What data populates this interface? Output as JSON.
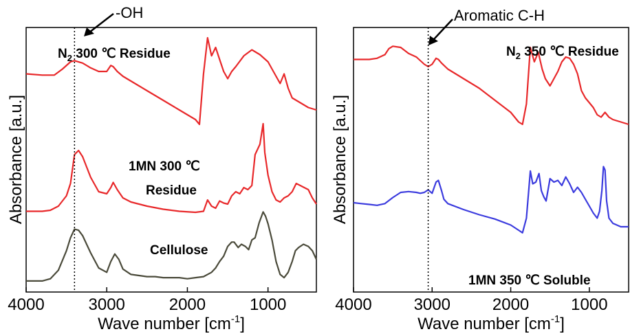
{
  "chart_data": [
    {
      "type": "line",
      "xlabel": "Wave number [cm-1]",
      "xlabel_main": "Wave number [cm",
      "xlabel_sup": "-1",
      "xlabel_end": "]",
      "ylabel": "Absorbance [a.u.]",
      "xlim": [
        4000,
        400
      ],
      "x_reversed": true,
      "xticks": [
        4000,
        3000,
        2000,
        1000
      ],
      "xtick_labels": [
        "4000",
        "3000",
        "2000",
        "1000"
      ],
      "yticks_shown": false,
      "grid": false,
      "reference_line": {
        "x": 3400,
        "label": "-OH",
        "style": "dotted"
      },
      "labels": {
        "n2": {
          "main": "N",
          "sub": "2",
          "rest": " 300 ℃ Residue"
        },
        "mn_line1": "1MN 300 ℃",
        "mn_line2": "Residue",
        "cellulose": "Cellulose"
      },
      "series": [
        {
          "color": "#e8282a",
          "x": [
            4000,
            3800,
            3650,
            3550,
            3450,
            3400,
            3300,
            3200,
            3100,
            3000,
            2950,
            2920,
            2870,
            2800,
            2700,
            2600,
            2500,
            2300,
            2100,
            1900,
            1850,
            1800,
            1750,
            1700,
            1650,
            1600,
            1550,
            1500,
            1450,
            1400,
            1300,
            1200,
            1100,
            1000,
            900,
            850,
            800,
            750,
            700,
            600,
            500,
            400
          ],
          "y": [
            0.7,
            0.69,
            0.69,
            0.74,
            0.8,
            0.81,
            0.79,
            0.75,
            0.72,
            0.72,
            0.77,
            0.76,
            0.72,
            0.68,
            0.64,
            0.6,
            0.56,
            0.48,
            0.4,
            0.32,
            0.28,
            0.7,
            1.0,
            0.85,
            0.92,
            0.82,
            0.72,
            0.66,
            0.72,
            0.76,
            0.85,
            0.9,
            0.86,
            0.8,
            0.68,
            0.62,
            0.7,
            0.58,
            0.5,
            0.46,
            0.42,
            0.4
          ]
        },
        {
          "color": "#e8282a",
          "x": [
            4000,
            3800,
            3700,
            3600,
            3500,
            3450,
            3400,
            3350,
            3300,
            3200,
            3100,
            3000,
            2950,
            2920,
            2870,
            2800,
            2700,
            2500,
            2300,
            2100,
            1900,
            1800,
            1750,
            1700,
            1650,
            1600,
            1550,
            1500,
            1450,
            1400,
            1350,
            1300,
            1250,
            1200,
            1160,
            1100,
            1060,
            1040,
            1000,
            950,
            900,
            850,
            800,
            750,
            700,
            650,
            600,
            550,
            500,
            450,
            400
          ],
          "y": [
            0.05,
            0.05,
            0.06,
            0.1,
            0.2,
            0.32,
            0.6,
            0.64,
            0.58,
            0.38,
            0.24,
            0.22,
            0.28,
            0.33,
            0.26,
            0.18,
            0.14,
            0.1,
            0.07,
            0.05,
            0.04,
            0.05,
            0.16,
            0.1,
            0.08,
            0.15,
            0.13,
            0.12,
            0.2,
            0.24,
            0.22,
            0.28,
            0.26,
            0.3,
            0.6,
            0.7,
            0.9,
            0.62,
            0.4,
            0.24,
            0.16,
            0.14,
            0.18,
            0.2,
            0.24,
            0.32,
            0.3,
            0.28,
            0.26,
            0.18,
            0.12
          ]
        },
        {
          "color": "#4a4a3a",
          "x": [
            4000,
            3800,
            3700,
            3600,
            3500,
            3450,
            3400,
            3350,
            3300,
            3200,
            3100,
            3000,
            2950,
            2900,
            2850,
            2800,
            2700,
            2600,
            2500,
            2400,
            2300,
            2200,
            2100,
            2000,
            1900,
            1800,
            1700,
            1650,
            1600,
            1550,
            1500,
            1450,
            1420,
            1370,
            1330,
            1280,
            1240,
            1200,
            1160,
            1110,
            1060,
            1030,
            1000,
            950,
            900,
            850,
            800,
            750,
            700,
            660,
            620,
            560,
            500,
            450,
            400
          ],
          "y": [
            0.02,
            0.02,
            0.04,
            0.12,
            0.3,
            0.42,
            0.5,
            0.49,
            0.44,
            0.28,
            0.14,
            0.1,
            0.2,
            0.27,
            0.22,
            0.13,
            0.08,
            0.07,
            0.06,
            0.06,
            0.05,
            0.05,
            0.05,
            0.04,
            0.05,
            0.06,
            0.1,
            0.14,
            0.2,
            0.25,
            0.34,
            0.38,
            0.38,
            0.33,
            0.36,
            0.34,
            0.31,
            0.4,
            0.42,
            0.56,
            0.66,
            0.62,
            0.55,
            0.4,
            0.2,
            0.08,
            0.05,
            0.1,
            0.2,
            0.3,
            0.33,
            0.36,
            0.34,
            0.3,
            0.22
          ]
        }
      ]
    },
    {
      "type": "line",
      "xlabel": "Wave number [cm-1]",
      "xlabel_main": "Wave number [cm",
      "xlabel_sup": "-1",
      "xlabel_end": "]",
      "ylabel": "Absorbance [a.u.]",
      "xlim": [
        4000,
        500
      ],
      "x_reversed": true,
      "xticks": [
        4000,
        3000,
        2000,
        1000
      ],
      "xtick_labels": [
        "4000",
        "3000",
        "2000",
        "1000"
      ],
      "yticks_shown": false,
      "grid": false,
      "reference_line": {
        "x": 3050,
        "label": "Aromatic C-H",
        "style": "dotted"
      },
      "labels": {
        "n2": {
          "main": "N",
          "sub": "2",
          "rest": " 350 ℃ Residue"
        },
        "mn": "1MN 350 ℃ Soluble"
      },
      "series": [
        {
          "color": "#e8282a",
          "x": [
            4000,
            3900,
            3800,
            3700,
            3600,
            3550,
            3500,
            3400,
            3300,
            3200,
            3100,
            3050,
            3000,
            2950,
            2920,
            2880,
            2800,
            2600,
            2400,
            2200,
            2000,
            1900,
            1850,
            1800,
            1750,
            1700,
            1650,
            1600,
            1560,
            1500,
            1450,
            1400,
            1350,
            1300,
            1250,
            1200,
            1150,
            1100,
            1050,
            1000,
            950,
            900,
            850,
            800,
            750,
            700,
            600,
            500
          ],
          "y": [
            0.82,
            0.82,
            0.82,
            0.83,
            0.86,
            0.91,
            0.93,
            0.92,
            0.87,
            0.84,
            0.78,
            0.76,
            0.78,
            0.83,
            0.82,
            0.79,
            0.74,
            0.66,
            0.58,
            0.48,
            0.38,
            0.3,
            0.28,
            0.45,
            0.92,
            0.8,
            0.88,
            0.74,
            0.66,
            0.6,
            0.66,
            0.72,
            0.8,
            0.84,
            0.83,
            0.78,
            0.7,
            0.56,
            0.5,
            0.46,
            0.42,
            0.36,
            0.34,
            0.38,
            0.34,
            0.32,
            0.3,
            0.28
          ]
        },
        {
          "color": "#3b3bde",
          "x": [
            4000,
            3900,
            3800,
            3700,
            3600,
            3500,
            3400,
            3300,
            3200,
            3150,
            3100,
            3050,
            3000,
            2950,
            2920,
            2880,
            2850,
            2800,
            2600,
            2400,
            2200,
            2000,
            1900,
            1850,
            1800,
            1750,
            1720,
            1680,
            1640,
            1610,
            1580,
            1550,
            1500,
            1450,
            1400,
            1350,
            1300,
            1250,
            1200,
            1150,
            1100,
            1050,
            1000,
            950,
            900,
            870,
            840,
            820,
            800,
            780,
            750,
            700,
            600,
            500
          ],
          "y": [
            0.48,
            0.47,
            0.46,
            0.45,
            0.47,
            0.54,
            0.6,
            0.61,
            0.6,
            0.59,
            0.6,
            0.63,
            0.59,
            0.72,
            0.74,
            0.62,
            0.52,
            0.47,
            0.4,
            0.34,
            0.29,
            0.22,
            0.16,
            0.13,
            0.3,
            0.85,
            0.7,
            0.72,
            0.82,
            0.62,
            0.55,
            0.5,
            0.76,
            0.72,
            0.74,
            0.68,
            0.78,
            0.7,
            0.6,
            0.66,
            0.6,
            0.52,
            0.44,
            0.36,
            0.3,
            0.38,
            0.62,
            0.9,
            0.86,
            0.5,
            0.3,
            0.24,
            0.2,
            0.2
          ]
        }
      ]
    }
  ]
}
